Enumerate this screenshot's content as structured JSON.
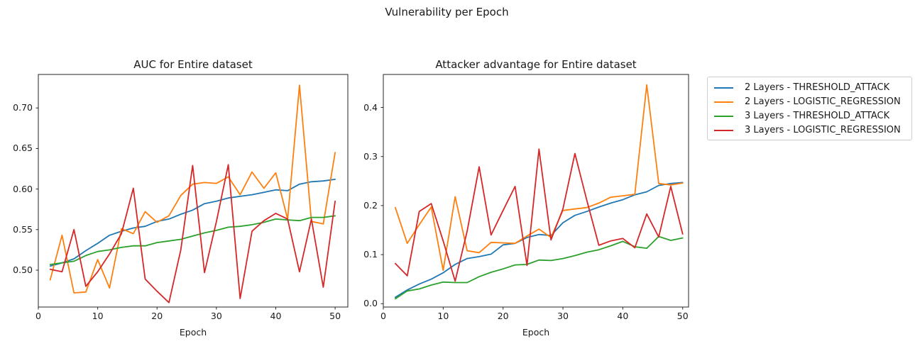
{
  "figure": {
    "suptitle": "Vulnerability per Epoch"
  },
  "legend": {
    "items": [
      {
        "label": "2 Layers - THRESHOLD_ATTACK",
        "color": "#1f77b4"
      },
      {
        "label": "2 Layers - LOGISTIC_REGRESSION",
        "color": "#ff7f0e"
      },
      {
        "label": "3 Layers - THRESHOLD_ATTACK",
        "color": "#2ca02c"
      },
      {
        "label": "3 Layers - LOGISTIC_REGRESSION",
        "color": "#d62728"
      }
    ]
  },
  "chart_data": [
    {
      "type": "line",
      "title": "AUC for Entire dataset",
      "xlabel": "Epoch",
      "ylabel": "",
      "x": [
        2,
        4,
        6,
        8,
        10,
        12,
        14,
        16,
        18,
        20,
        22,
        24,
        26,
        28,
        30,
        32,
        34,
        36,
        38,
        40,
        42,
        44,
        46,
        48,
        50
      ],
      "xlim": [
        0,
        52.14
      ],
      "ylim": [
        0.4545,
        0.7413
      ],
      "xticks": [
        0,
        10,
        20,
        30,
        40,
        50
      ],
      "xtick_labels": [
        "0",
        "10",
        "20",
        "30",
        "40",
        "50"
      ],
      "yticks": [
        0.5,
        0.55,
        0.6,
        0.65,
        0.7
      ],
      "ytick_labels": [
        "0.50",
        "0.55",
        "0.60",
        "0.65",
        "0.70"
      ],
      "grid": false,
      "legend_position": "outside-right-of-second-plot",
      "series": [
        {
          "name": "2 Layers - THRESHOLD_ATTACK",
          "color": "#1f77b4",
          "values": [
            0.505,
            0.509,
            0.514,
            0.524,
            0.533,
            0.543,
            0.548,
            0.552,
            0.554,
            0.56,
            0.563,
            0.569,
            0.574,
            0.582,
            0.585,
            0.589,
            0.591,
            0.593,
            0.596,
            0.599,
            0.598,
            0.606,
            0.609,
            0.61,
            0.612
          ]
        },
        {
          "name": "2 Layers - LOGISTIC_REGRESSION",
          "color": "#ff7f0e",
          "values": [
            0.488,
            0.543,
            0.472,
            0.473,
            0.513,
            0.478,
            0.551,
            0.545,
            0.572,
            0.559,
            0.567,
            0.592,
            0.606,
            0.608,
            0.607,
            0.615,
            0.593,
            0.621,
            0.601,
            0.62,
            0.563,
            0.728,
            0.56,
            0.557,
            0.645
          ]
        },
        {
          "name": "3 Layers - THRESHOLD_ATTACK",
          "color": "#2ca02c",
          "values": [
            0.507,
            0.509,
            0.511,
            0.518,
            0.523,
            0.525,
            0.528,
            0.53,
            0.53,
            0.534,
            0.536,
            0.538,
            0.542,
            0.546,
            0.549,
            0.553,
            0.554,
            0.556,
            0.559,
            0.563,
            0.562,
            0.561,
            0.565,
            0.565,
            0.567
          ]
        },
        {
          "name": "3 Layers - LOGISTIC_REGRESSION",
          "color": "#d62728",
          "values": [
            0.501,
            0.498,
            0.55,
            0.48,
            0.498,
            0.52,
            0.545,
            0.601,
            0.489,
            0.474,
            0.46,
            0.525,
            0.629,
            0.497,
            0.56,
            0.63,
            0.465,
            0.548,
            0.561,
            0.57,
            0.563,
            0.498,
            0.563,
            0.479,
            0.585
          ]
        }
      ]
    },
    {
      "type": "line",
      "title": "Attacker advantage for Entire dataset",
      "xlabel": "Epoch",
      "ylabel": "",
      "x": [
        2,
        4,
        6,
        8,
        10,
        12,
        14,
        16,
        18,
        20,
        22,
        24,
        26,
        28,
        30,
        32,
        34,
        36,
        38,
        40,
        42,
        44,
        46,
        48,
        50
      ],
      "xlim": [
        0,
        50.98
      ],
      "ylim": [
        -0.0068,
        0.4672
      ],
      "xticks": [
        0,
        10,
        20,
        30,
        40,
        50
      ],
      "xtick_labels": [
        "0",
        "10",
        "20",
        "30",
        "40",
        "50"
      ],
      "yticks": [
        0.0,
        0.1,
        0.2,
        0.3,
        0.4
      ],
      "ytick_labels": [
        "0.0",
        "0.1",
        "0.2",
        "0.3",
        "0.4"
      ],
      "grid": false,
      "legend_position": "outside-right",
      "series": [
        {
          "name": "2 Layers - THRESHOLD_ATTACK",
          "color": "#1f77b4",
          "values": [
            0.013,
            0.028,
            0.04,
            0.05,
            0.063,
            0.08,
            0.092,
            0.096,
            0.101,
            0.12,
            0.123,
            0.135,
            0.141,
            0.139,
            0.165,
            0.18,
            0.188,
            0.197,
            0.205,
            0.212,
            0.222,
            0.228,
            0.241,
            0.245,
            0.247
          ]
        },
        {
          "name": "2 Layers - LOGISTIC_REGRESSION",
          "color": "#ff7f0e",
          "values": [
            0.196,
            0.123,
            0.161,
            0.197,
            0.068,
            0.218,
            0.108,
            0.104,
            0.125,
            0.124,
            0.123,
            0.138,
            0.152,
            0.135,
            0.19,
            0.193,
            0.196,
            0.205,
            0.217,
            0.22,
            0.223,
            0.446,
            0.245,
            0.242,
            0.246
          ]
        },
        {
          "name": "3 Layers - THRESHOLD_ATTACK",
          "color": "#2ca02c",
          "values": [
            0.01,
            0.026,
            0.03,
            0.038,
            0.044,
            0.043,
            0.043,
            0.055,
            0.064,
            0.071,
            0.079,
            0.08,
            0.089,
            0.088,
            0.092,
            0.098,
            0.105,
            0.11,
            0.118,
            0.127,
            0.116,
            0.113,
            0.137,
            0.129,
            0.134
          ]
        },
        {
          "name": "3 Layers - LOGISTIC_REGRESSION",
          "color": "#d62728",
          "values": [
            0.082,
            0.057,
            0.188,
            0.204,
            0.128,
            0.046,
            0.148,
            0.279,
            0.14,
            0.19,
            0.239,
            0.078,
            0.315,
            0.13,
            0.193,
            0.306,
            0.21,
            0.119,
            0.128,
            0.133,
            0.114,
            0.183,
            0.136,
            0.239,
            0.142
          ]
        }
      ]
    }
  ]
}
